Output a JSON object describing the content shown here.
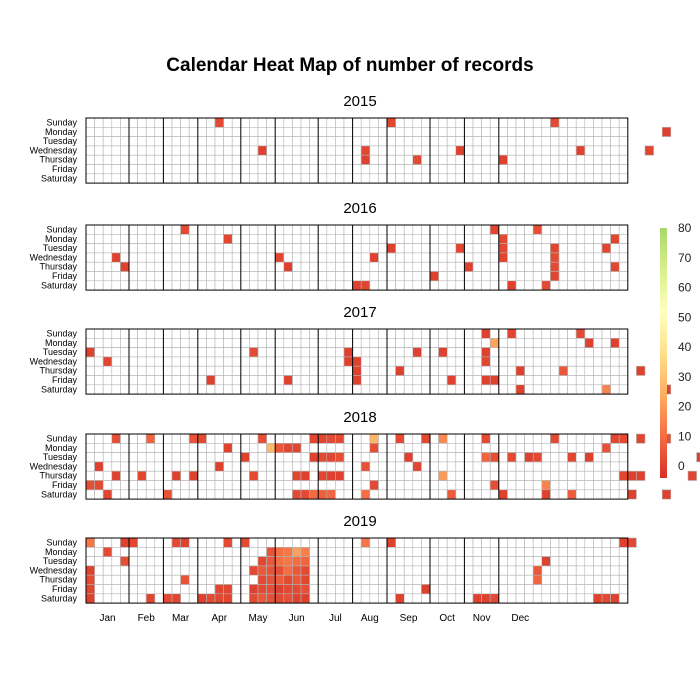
{
  "chart_data": {
    "type": "heatmap",
    "title": "Calendar Heat Map of number of records",
    "years": [
      "2015",
      "2016",
      "2017",
      "2018",
      "2019"
    ],
    "weekdays": [
      "Sunday",
      "Monday",
      "Tuesday",
      "Wednesday",
      "Thursday",
      "Friday",
      "Saturday"
    ],
    "months": [
      "Jan",
      "Feb",
      "Mar",
      "Apr",
      "May",
      "Jun",
      "Jul",
      "Aug",
      "Sep",
      "Oct",
      "Nov",
      "Dec"
    ],
    "colorbar": {
      "ticks": [
        "0",
        "10",
        "20",
        "30",
        "40",
        "50",
        "60",
        "70",
        "80"
      ],
      "min": -4,
      "max": 80,
      "colors": [
        "#d73027",
        "#f46d43",
        "#fdae61",
        "#fee08b",
        "#ffffbf",
        "#d9ef8b",
        "#a6d96a"
      ]
    },
    "cells_format": "[week_of_year, weekday_index(0=Sunday), value]",
    "series": [
      {
        "year": "2015",
        "cells": [
          [
            15,
            0,
            2
          ],
          [
            35,
            0,
            1
          ],
          [
            54,
            0,
            2
          ],
          [
            67,
            1,
            0
          ],
          [
            77,
            1,
            0
          ],
          [
            20,
            3,
            0
          ],
          [
            32,
            3,
            1
          ],
          [
            43,
            3,
            0
          ],
          [
            57,
            3,
            0
          ],
          [
            65,
            3,
            1
          ],
          [
            32,
            4,
            0
          ],
          [
            38,
            4,
            2
          ],
          [
            48,
            4,
            0
          ],
          [
            76,
            5,
            0
          ]
        ]
      },
      {
        "year": "2016",
        "cells": [
          [
            11,
            0,
            2
          ],
          [
            47,
            0,
            1
          ],
          [
            52,
            0,
            3
          ],
          [
            16,
            1,
            1
          ],
          [
            48,
            1,
            2
          ],
          [
            61,
            1,
            1
          ],
          [
            35,
            2,
            0
          ],
          [
            43,
            2,
            1
          ],
          [
            48,
            2,
            2
          ],
          [
            54,
            2,
            1
          ],
          [
            60,
            2,
            1
          ],
          [
            3,
            3,
            0
          ],
          [
            22,
            3,
            1
          ],
          [
            33,
            3,
            0
          ],
          [
            48,
            3,
            1
          ],
          [
            54,
            3,
            2
          ],
          [
            72,
            3,
            1
          ],
          [
            4,
            4,
            0
          ],
          [
            23,
            4,
            0
          ],
          [
            44,
            4,
            0
          ],
          [
            54,
            4,
            2
          ],
          [
            61,
            4,
            1
          ],
          [
            40,
            5,
            0
          ],
          [
            54,
            5,
            1
          ],
          [
            72,
            5,
            0
          ],
          [
            31,
            6,
            0
          ],
          [
            32,
            6,
            1
          ],
          [
            49,
            6,
            0
          ],
          [
            53,
            6,
            2
          ]
        ]
      },
      {
        "year": "2017",
        "cells": [
          [
            46,
            0,
            0
          ],
          [
            49,
            0,
            1
          ],
          [
            57,
            0,
            2
          ],
          [
            47,
            1,
            22
          ],
          [
            58,
            1,
            0
          ],
          [
            61,
            1,
            0
          ],
          [
            73,
            1,
            0
          ],
          [
            0,
            2,
            0
          ],
          [
            19,
            2,
            2
          ],
          [
            30,
            2,
            0
          ],
          [
            38,
            2,
            0
          ],
          [
            41,
            2,
            0
          ],
          [
            46,
            2,
            0
          ],
          [
            2,
            3,
            1
          ],
          [
            30,
            3,
            0
          ],
          [
            31,
            3,
            0
          ],
          [
            46,
            3,
            1
          ],
          [
            31,
            4,
            0
          ],
          [
            36,
            4,
            0
          ],
          [
            50,
            4,
            0
          ],
          [
            55,
            4,
            5
          ],
          [
            64,
            4,
            0
          ],
          [
            14,
            5,
            0
          ],
          [
            23,
            5,
            0
          ],
          [
            31,
            5,
            0
          ],
          [
            42,
            5,
            0
          ],
          [
            46,
            5,
            0
          ],
          [
            47,
            5,
            0
          ],
          [
            50,
            6,
            0
          ],
          [
            60,
            6,
            15
          ],
          [
            67,
            6,
            0
          ],
          [
            72,
            6,
            1
          ]
        ]
      },
      {
        "year": "2018",
        "cells": [
          [
            3,
            0,
            3
          ],
          [
            7,
            0,
            8
          ],
          [
            12,
            0,
            4
          ],
          [
            13,
            0,
            2
          ],
          [
            20,
            0,
            3
          ],
          [
            26,
            0,
            1
          ],
          [
            27,
            0,
            1
          ],
          [
            28,
            0,
            2
          ],
          [
            29,
            0,
            2
          ],
          [
            33,
            0,
            26
          ],
          [
            36,
            0,
            2
          ],
          [
            39,
            0,
            2
          ],
          [
            41,
            0,
            16
          ],
          [
            46,
            0,
            2
          ],
          [
            54,
            0,
            2
          ],
          [
            61,
            0,
            1
          ],
          [
            62,
            0,
            2
          ],
          [
            64,
            0,
            1
          ],
          [
            67,
            0,
            3
          ],
          [
            75,
            1,
            2
          ],
          [
            16,
            1,
            0
          ],
          [
            21,
            1,
            27
          ],
          [
            22,
            1,
            5
          ],
          [
            23,
            1,
            1
          ],
          [
            24,
            1,
            1
          ],
          [
            33,
            1,
            3
          ],
          [
            60,
            1,
            4
          ],
          [
            75,
            1,
            0
          ],
          [
            76,
            1,
            0
          ],
          [
            18,
            2,
            0
          ],
          [
            26,
            2,
            0
          ],
          [
            27,
            2,
            2
          ],
          [
            28,
            2,
            1
          ],
          [
            29,
            2,
            3
          ],
          [
            37,
            2,
            0
          ],
          [
            46,
            2,
            8
          ],
          [
            47,
            2,
            3
          ],
          [
            49,
            2,
            2
          ],
          [
            51,
            2,
            0
          ],
          [
            52,
            2,
            2
          ],
          [
            56,
            2,
            1
          ],
          [
            58,
            2,
            0
          ],
          [
            71,
            2,
            0
          ],
          [
            1,
            3,
            0
          ],
          [
            15,
            3,
            0
          ],
          [
            32,
            3,
            4
          ],
          [
            38,
            3,
            1
          ],
          [
            3,
            4,
            0
          ],
          [
            6,
            4,
            1
          ],
          [
            10,
            4,
            0
          ],
          [
            12,
            4,
            0
          ],
          [
            19,
            4,
            2
          ],
          [
            24,
            4,
            1
          ],
          [
            25,
            4,
            0
          ],
          [
            27,
            4,
            1
          ],
          [
            28,
            4,
            0
          ],
          [
            29,
            4,
            0
          ],
          [
            41,
            4,
            20
          ],
          [
            62,
            4,
            1
          ],
          [
            63,
            4,
            0
          ],
          [
            64,
            4,
            0
          ],
          [
            70,
            4,
            1
          ],
          [
            0,
            5,
            3
          ],
          [
            1,
            5,
            2
          ],
          [
            33,
            5,
            0
          ],
          [
            33,
            5,
            2
          ],
          [
            47,
            5,
            3
          ],
          [
            53,
            5,
            15
          ],
          [
            2,
            6,
            1
          ],
          [
            9,
            6,
            4
          ],
          [
            24,
            6,
            2
          ],
          [
            25,
            6,
            2
          ],
          [
            26,
            6,
            9
          ],
          [
            27,
            6,
            7
          ],
          [
            28,
            6,
            8
          ],
          [
            32,
            6,
            10
          ],
          [
            42,
            6,
            6
          ],
          [
            48,
            6,
            0
          ],
          [
            53,
            6,
            0
          ],
          [
            56,
            6,
            6
          ],
          [
            63,
            6,
            0
          ],
          [
            67,
            6,
            0
          ],
          [
            75,
            6,
            0
          ]
        ]
      },
      {
        "year": "2019",
        "cells": [
          [
            0,
            0,
            12
          ],
          [
            4,
            0,
            0
          ],
          [
            5,
            0,
            1
          ],
          [
            10,
            0,
            2
          ],
          [
            11,
            0,
            0
          ],
          [
            16,
            0,
            2
          ],
          [
            18,
            0,
            2
          ],
          [
            32,
            0,
            12
          ],
          [
            35,
            0,
            0
          ],
          [
            62,
            0,
            0
          ],
          [
            63,
            0,
            2
          ],
          [
            2,
            1,
            2
          ],
          [
            21,
            1,
            4
          ],
          [
            22,
            1,
            10
          ],
          [
            23,
            1,
            12
          ],
          [
            24,
            1,
            21
          ],
          [
            25,
            1,
            14
          ],
          [
            4,
            2,
            3
          ],
          [
            20,
            2,
            1
          ],
          [
            21,
            2,
            5
          ],
          [
            22,
            2,
            10
          ],
          [
            23,
            2,
            12
          ],
          [
            24,
            2,
            10
          ],
          [
            25,
            2,
            8
          ],
          [
            53,
            2,
            0
          ],
          [
            0,
            3,
            0
          ],
          [
            19,
            3,
            2
          ],
          [
            20,
            3,
            5
          ],
          [
            21,
            3,
            4
          ],
          [
            22,
            3,
            3
          ],
          [
            23,
            3,
            10
          ],
          [
            24,
            3,
            5
          ],
          [
            25,
            3,
            2
          ],
          [
            52,
            3,
            5
          ],
          [
            0,
            4,
            2
          ],
          [
            11,
            4,
            4
          ],
          [
            20,
            4,
            2
          ],
          [
            21,
            4,
            4
          ],
          [
            22,
            4,
            6
          ],
          [
            23,
            4,
            2
          ],
          [
            24,
            4,
            5
          ],
          [
            25,
            4,
            1
          ],
          [
            52,
            4,
            8
          ],
          [
            0,
            5,
            1
          ],
          [
            15,
            5,
            1
          ],
          [
            16,
            5,
            1
          ],
          [
            19,
            5,
            0
          ],
          [
            20,
            5,
            2
          ],
          [
            21,
            5,
            3
          ],
          [
            22,
            5,
            0
          ],
          [
            23,
            5,
            2
          ],
          [
            24,
            5,
            2
          ],
          [
            25,
            5,
            3
          ],
          [
            39,
            5,
            0
          ],
          [
            0,
            6,
            0
          ],
          [
            7,
            6,
            1
          ],
          [
            9,
            6,
            2
          ],
          [
            10,
            6,
            1
          ],
          [
            13,
            6,
            0
          ],
          [
            14,
            6,
            2
          ],
          [
            15,
            6,
            1
          ],
          [
            16,
            6,
            1
          ],
          [
            19,
            6,
            2
          ],
          [
            20,
            6,
            5
          ],
          [
            21,
            6,
            3
          ],
          [
            22,
            6,
            2
          ],
          [
            23,
            6,
            3
          ],
          [
            24,
            6,
            0
          ],
          [
            25,
            6,
            0
          ],
          [
            36,
            6,
            0
          ],
          [
            45,
            6,
            0
          ],
          [
            46,
            6,
            0
          ],
          [
            47,
            6,
            2
          ],
          [
            59,
            6,
            0
          ],
          [
            60,
            6,
            2
          ],
          [
            61,
            6,
            0
          ]
        ]
      }
    ]
  }
}
